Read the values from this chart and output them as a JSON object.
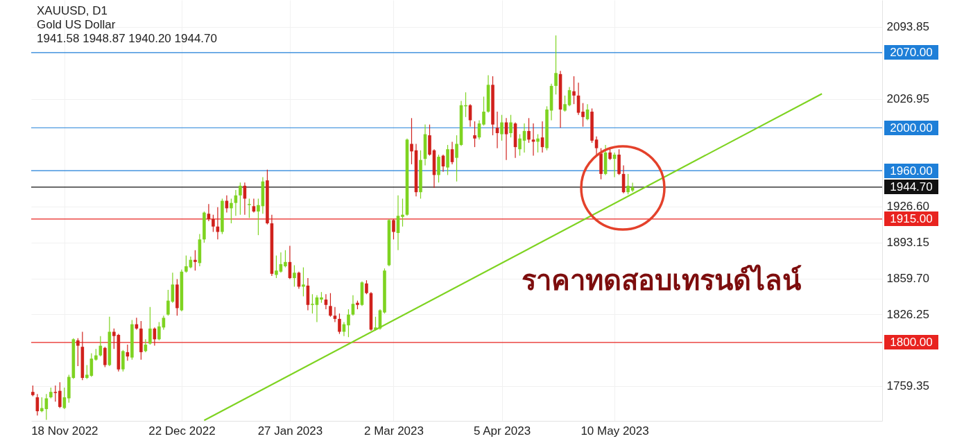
{
  "chart_data": {
    "type": "candlestick",
    "title": "XAUUSD, D1",
    "subtitle": "Gold US Dollar",
    "annotations": [
      "1941.58 1948.87 1940.20 1944.70",
      "ราคาทดสอบเทรนด์ไลน์"
    ],
    "categories": [
      null,
      null,
      null,
      null,
      null,
      null,
      null,
      "18 Nov 2022",
      null,
      null,
      null,
      null,
      null,
      null,
      null,
      null,
      null,
      null,
      null,
      null,
      null,
      null,
      null,
      null,
      null,
      null,
      null,
      null,
      null,
      null,
      null,
      null,
      null,
      "22 Dec 2022",
      null,
      null,
      null,
      null,
      null,
      null,
      null,
      null,
      null,
      null,
      null,
      null,
      null,
      null,
      null,
      null,
      null,
      null,
      null,
      null,
      null,
      null,
      null,
      "27 Jan 2023",
      null,
      null,
      null,
      null,
      null,
      null,
      null,
      null,
      null,
      null,
      null,
      null,
      null,
      null,
      null,
      null,
      null,
      null,
      null,
      null,
      null,
      null,
      "2 Mar 2023",
      null,
      null,
      null,
      null,
      null,
      null,
      null,
      null,
      null,
      null,
      null,
      null,
      null,
      null,
      null,
      null,
      null,
      null,
      null,
      null,
      null,
      null,
      null,
      "5 Apr 2023",
      null,
      null,
      null,
      null,
      null,
      null,
      null,
      null,
      null,
      null,
      null,
      null,
      null,
      null,
      null,
      null,
      null,
      null,
      null,
      null,
      null,
      null,
      null,
      null,
      "10 May 2023",
      null,
      null,
      null,
      null,
      null,
      null,
      null,
      null,
      null,
      null,
      null,
      null,
      null,
      null,
      null,
      null,
      null,
      null,
      null,
      null,
      null,
      null,
      null,
      null,
      null,
      null,
      null,
      null,
      null,
      null,
      null,
      null,
      null,
      null,
      null,
      null,
      null,
      null,
      null,
      null,
      null,
      null,
      null,
      null,
      null,
      null,
      null,
      null,
      null,
      null,
      null,
      null,
      null,
      null,
      null,
      null,
      null,
      null,
      null
    ],
    "ohlc": [
      [
        1754,
        1760,
        1750,
        1751
      ],
      [
        1749,
        1752,
        1732,
        1736
      ],
      [
        1736,
        1749,
        1735,
        1739
      ],
      [
        1738,
        1752,
        1728,
        1748
      ],
      [
        1749,
        1758,
        1748,
        1754
      ],
      [
        1754,
        1760,
        1745,
        1753
      ],
      [
        1755,
        1763,
        1739,
        1740
      ],
      [
        1739,
        1758,
        1738,
        1749
      ],
      [
        1748,
        1770,
        1744,
        1768
      ],
      [
        1767,
        1804,
        1766,
        1803
      ],
      [
        1802,
        1804,
        1778,
        1797
      ],
      [
        1796,
        1810,
        1765,
        1767
      ],
      [
        1767,
        1779,
        1766,
        1770
      ],
      [
        1769,
        1790,
        1768,
        1785
      ],
      [
        1784,
        1794,
        1783,
        1788
      ],
      [
        1788,
        1806,
        1787,
        1797
      ],
      [
        1795,
        1796,
        1777,
        1779
      ],
      [
        1779,
        1824,
        1778,
        1810
      ],
      [
        1810,
        1813,
        1794,
        1806
      ],
      [
        1807,
        1808,
        1773,
        1775
      ],
      [
        1775,
        1793,
        1773,
        1792
      ],
      [
        1791,
        1798,
        1783,
        1787
      ],
      [
        1786,
        1821,
        1784,
        1817
      ],
      [
        1817,
        1823,
        1812,
        1813
      ],
      [
        1813,
        1820,
        1784,
        1791
      ],
      [
        1792,
        1803,
        1791,
        1798
      ],
      [
        1799,
        1833,
        1798,
        1813
      ],
      [
        1813,
        1814,
        1797,
        1803
      ],
      [
        1803,
        1819,
        1802,
        1815
      ],
      [
        1814,
        1825,
        1812,
        1823
      ],
      [
        1826,
        1849,
        1825,
        1839
      ],
      [
        1838,
        1865,
        1837,
        1854
      ],
      [
        1854,
        1859,
        1825,
        1832
      ],
      [
        1830,
        1868,
        1829,
        1866
      ],
      [
        1866,
        1881,
        1865,
        1871
      ],
      [
        1870,
        1880,
        1869,
        1877
      ],
      [
        1877,
        1886,
        1867,
        1875
      ],
      [
        1874,
        1901,
        1871,
        1896
      ],
      [
        1896,
        1922,
        1893,
        1921
      ],
      [
        1920,
        1929,
        1913,
        1915
      ],
      [
        1915,
        1919,
        1903,
        1908
      ],
      [
        1908,
        1926,
        1896,
        1903
      ],
      [
        1903,
        1934,
        1901,
        1932
      ],
      [
        1932,
        1937,
        1921,
        1925
      ],
      [
        1925,
        1934,
        1911,
        1930
      ],
      [
        1930,
        1942,
        1918,
        1937
      ],
      [
        1937,
        1949,
        1919,
        1946
      ],
      [
        1946,
        1949,
        1919,
        1934
      ],
      [
        1928,
        1934,
        1916,
        1929
      ],
      [
        1927,
        1934,
        1921,
        1922
      ],
      [
        1922,
        1934,
        1900,
        1928
      ],
      [
        1927,
        1954,
        1920,
        1950
      ],
      [
        1951,
        1961,
        1910,
        1911
      ],
      [
        1911,
        1919,
        1862,
        1864
      ],
      [
        1863,
        1881,
        1860,
        1867
      ],
      [
        1866,
        1884,
        1865,
        1873
      ],
      [
        1871,
        1886,
        1870,
        1875
      ],
      [
        1875,
        1890,
        1859,
        1860
      ],
      [
        1860,
        1872,
        1852,
        1865
      ],
      [
        1865,
        1866,
        1850,
        1852
      ],
      [
        1852,
        1870,
        1843,
        1854
      ],
      [
        1853,
        1860,
        1830,
        1835
      ],
      [
        1835,
        1845,
        1827,
        1836
      ],
      [
        1835,
        1844,
        1819,
        1842
      ],
      [
        1840,
        1847,
        1837,
        1842
      ],
      [
        1840,
        1845,
        1831,
        1835
      ],
      [
        1834,
        1846,
        1824,
        1825
      ],
      [
        1825,
        1833,
        1819,
        1822
      ],
      [
        1822,
        1827,
        1808,
        1810
      ],
      [
        1810,
        1819,
        1806,
        1817
      ],
      [
        1816,
        1831,
        1805,
        1826
      ],
      [
        1826,
        1844,
        1825,
        1836
      ],
      [
        1837,
        1839,
        1831,
        1835
      ],
      [
        1835,
        1857,
        1834,
        1856
      ],
      [
        1855,
        1858,
        1845,
        1846
      ],
      [
        1846,
        1847,
        1811,
        1812
      ],
      [
        1812,
        1824,
        1811,
        1814
      ],
      [
        1813,
        1831,
        1812,
        1830
      ],
      [
        1828,
        1869,
        1827,
        1867
      ],
      [
        1872,
        1915,
        1871,
        1914
      ],
      [
        1914,
        1915,
        1896,
        1903
      ],
      [
        1902,
        1937,
        1886,
        1918
      ],
      [
        1917,
        1934,
        1908,
        1919
      ],
      [
        1919,
        1990,
        1918,
        1989
      ],
      [
        1985,
        2009,
        1966,
        1978
      ],
      [
        1979,
        1985,
        1936,
        1940
      ],
      [
        1940,
        1979,
        1934,
        1970
      ],
      [
        1971,
        2003,
        1965,
        1994
      ],
      [
        1993,
        2003,
        1974,
        1975
      ],
      [
        1979,
        1980,
        1944,
        1956
      ],
      [
        1956,
        1975,
        1949,
        1973
      ],
      [
        1974,
        1975,
        1959,
        1964
      ],
      [
        1963,
        1984,
        1956,
        1980
      ],
      [
        1980,
        1987,
        1966,
        1968
      ],
      [
        1972,
        1993,
        1950,
        1985
      ],
      [
        1984,
        2025,
        1983,
        2021
      ],
      [
        2020,
        2033,
        2010,
        2021
      ],
      [
        2021,
        2022,
        2001,
        2007
      ],
      [
        1993,
        2006,
        1982,
        1990
      ],
      [
        1991,
        2007,
        1989,
        2004
      ],
      [
        2003,
        2029,
        2002,
        2015
      ],
      [
        2015,
        2049,
        2014,
        2040
      ],
      [
        2040,
        2048,
        1993,
        2003
      ],
      [
        2000,
        2015,
        1981,
        1995
      ],
      [
        1994,
        2012,
        1988,
        2005
      ],
      [
        2005,
        2009,
        1970,
        1994
      ],
      [
        1995,
        2012,
        1991,
        2005
      ],
      [
        2004,
        2005,
        1972,
        1982
      ],
      [
        1980,
        1994,
        1974,
        1990
      ],
      [
        1988,
        2004,
        1977,
        1997
      ],
      [
        1997,
        2009,
        1986,
        1989
      ],
      [
        1989,
        2004,
        1974,
        1987
      ],
      [
        1987,
        1994,
        1977,
        1990
      ],
      [
        1991,
        2006,
        1977,
        1982
      ],
      [
        1981,
        2020,
        1979,
        2017
      ],
      [
        2016,
        2041,
        2007,
        2039
      ],
      [
        2039,
        2086,
        2031,
        2051
      ],
      [
        2050,
        2053,
        2000,
        2017
      ],
      [
        2016,
        2030,
        2015,
        2022
      ],
      [
        2021,
        2038,
        2020,
        2035
      ],
      [
        2034,
        2048,
        2022,
        2030
      ],
      [
        2030,
        2042,
        2012,
        2014
      ],
      [
        2015,
        2023,
        2001,
        2010
      ],
      [
        2008,
        2022,
        2007,
        2017
      ],
      [
        2015,
        2018,
        1986,
        1988
      ],
      [
        1989,
        1992,
        1975,
        1981
      ],
      [
        1976,
        1981,
        1952,
        1957
      ],
      [
        1957,
        1984,
        1956,
        1977
      ],
      [
        1977,
        1982,
        1970,
        1971
      ],
      [
        1971,
        1977,
        1954,
        1975
      ],
      [
        1975,
        1980,
        1956,
        1957
      ],
      [
        1957,
        1965,
        1939,
        1940
      ],
      [
        1940,
        1957,
        1938,
        1946
      ],
      [
        1941.58,
        1948.87,
        1940.2,
        1944.7
      ],
      null,
      null,
      null,
      null,
      null,
      null,
      null,
      null,
      null,
      null,
      null,
      null,
      null,
      null,
      null,
      null,
      null,
      null,
      null,
      null,
      null,
      null,
      null,
      null,
      null,
      null,
      null,
      null,
      null,
      null,
      null,
      null,
      null,
      null,
      null,
      null,
      null,
      null,
      null,
      null,
      null,
      null,
      null,
      null,
      null,
      null,
      null,
      null,
      null,
      null,
      null,
      null,
      null,
      null,
      null
    ],
    "colors": [
      "#d0211c",
      "#d0211c",
      "#7ed321",
      "#7ed321",
      "#7ed321",
      "#d0211c",
      "#d0211c",
      "#7ed321",
      "#7ed321",
      "#7ed321",
      "#d0211c",
      "#d0211c",
      "#7ed321",
      "#7ed321",
      "#7ed321",
      "#7ed321",
      "#d0211c",
      "#7ed321",
      "#d0211c",
      "#d0211c",
      "#7ed321",
      "#d0211c",
      "#7ed321",
      "#d0211c",
      "#d0211c",
      "#7ed321",
      "#7ed321",
      "#d0211c",
      "#7ed321",
      "#7ed321",
      "#7ed321",
      "#7ed321",
      "#d0211c",
      "#7ed321",
      "#7ed321",
      "#7ed321",
      "#d0211c",
      "#7ed321",
      "#7ed321",
      "#d0211c",
      "#d0211c",
      "#d0211c",
      "#7ed321",
      "#d0211c",
      "#7ed321",
      "#7ed321",
      "#7ed321",
      "#d0211c",
      "#7ed321",
      "#d0211c",
      "#7ed321",
      "#7ed321",
      "#d0211c",
      "#d0211c",
      "#7ed321",
      "#7ed321",
      "#7ed321",
      "#d0211c",
      "#7ed321",
      "#d0211c",
      "#7ed321",
      "#d0211c",
      "#7ed321",
      "#7ed321",
      "#7ed321",
      "#d0211c",
      "#d0211c",
      "#d0211c",
      "#d0211c",
      "#7ed321",
      "#7ed321",
      "#7ed321",
      "#d0211c",
      "#7ed321",
      "#d0211c",
      "#d0211c",
      "#7ed321",
      "#7ed321",
      "#7ed321",
      "#7ed321",
      "#d0211c",
      "#7ed321",
      "#7ed321",
      "#7ed321",
      "#d0211c",
      "#d0211c",
      "#7ed321",
      "#7ed321",
      "#d0211c",
      "#d0211c",
      "#7ed321",
      "#d0211c",
      "#7ed321",
      "#d0211c",
      "#7ed321",
      "#7ed321",
      "#7ed321",
      "#d0211c",
      "#d0211c",
      "#7ed321",
      "#7ed321",
      "#7ed321",
      "#d0211c",
      "#d0211c",
      "#7ed321",
      "#d0211c",
      "#7ed321",
      "#d0211c",
      "#7ed321",
      "#7ed321",
      "#d0211c",
      "#d0211c",
      "#7ed321",
      "#d0211c",
      "#7ed321",
      "#7ed321",
      "#7ed321",
      "#d0211c",
      "#7ed321",
      "#7ed321",
      "#d0211c",
      "#d0211c",
      "#d0211c",
      "#7ed321",
      "#d0211c",
      "#d0211c",
      "#d0211c",
      "#7ed321",
      "#d0211c",
      "#7ed321",
      "#d0211c",
      "#d0211c",
      "#7ed321",
      "#7ed321",
      null,
      null,
      null,
      null,
      null,
      null,
      null,
      null,
      null,
      null,
      null,
      null,
      null,
      null,
      null,
      null,
      null,
      null,
      null,
      null,
      null,
      null,
      null,
      null,
      null,
      null,
      null,
      null,
      null,
      null,
      null,
      null,
      null,
      null,
      null,
      null,
      null,
      null,
      null,
      null,
      null,
      null,
      null,
      null,
      null,
      null,
      null,
      null,
      null,
      null,
      null,
      null,
      null,
      null,
      null
    ],
    "series": [
      {
        "type": "line",
        "color": "#7ed321",
        "values": [
          null,
          null,
          null,
          null,
          null,
          null,
          null,
          null,
          null,
          null,
          null,
          null,
          null,
          null,
          null,
          null,
          null,
          null,
          null,
          null,
          null,
          null,
          null,
          null,
          null,
          null,
          null,
          null,
          null,
          null,
          null,
          null,
          null,
          null,
          null,
          null,
          null,
          null,
          1727.5,
          null,
          null,
          null,
          null,
          null,
          null,
          null,
          null,
          null,
          null,
          null,
          null,
          null,
          null,
          null,
          null,
          null,
          null,
          null,
          null,
          null,
          null,
          null,
          null,
          null,
          null,
          null,
          null,
          null,
          null,
          null,
          null,
          null,
          null,
          null,
          null,
          null,
          null,
          null,
          null,
          null,
          null,
          null,
          null,
          null,
          null,
          null,
          null,
          null,
          null,
          null,
          null,
          null,
          null,
          null,
          null,
          null,
          null,
          null,
          null,
          null,
          null,
          null,
          null,
          null,
          null,
          null,
          null,
          null,
          null,
          null,
          null,
          null,
          null,
          null,
          null,
          null,
          null,
          null,
          null,
          null,
          null,
          null,
          null,
          null,
          null,
          null,
          null,
          null,
          null,
          null,
          null,
          null,
          null,
          null,
          null,
          null,
          null,
          null,
          null,
          null,
          null,
          null,
          null,
          null,
          null,
          null,
          null,
          null,
          null,
          null,
          null,
          null,
          null,
          null,
          null,
          null,
          null,
          null,
          null,
          null,
          null,
          null,
          null,
          null,
          null,
          null,
          null,
          null,
          null,
          null,
          null,
          null,
          null,
          null,
          null,
          2031.7,
          null,
          null,
          null,
          null,
          null,
          null,
          null,
          null,
          null,
          null,
          null,
          null,
          null
        ]
      }
    ],
    "ylim": [
      1727,
      2119
    ],
    "yticks": [
      2093.85,
      2026.95,
      {
        "value": 1926.6,
        "label": "1926.60"
      },
      1893.15,
      {
        "value": 1859.7,
        "label": "1859.70"
      },
      1826.25,
      1759.35
    ],
    "ref_lines": [
      {
        "axis": "y",
        "value": 2070,
        "label": "2070.00",
        "color": "#1e7fd8"
      },
      {
        "axis": "y",
        "value": 2000,
        "label": "2000.00",
        "color": "#1e7fd8"
      },
      {
        "axis": "y",
        "value": 1960,
        "label": "1960.00",
        "color": "#1e7fd8"
      },
      {
        "axis": "y",
        "value": 1944.7,
        "label": "1944.70",
        "color": "#111111"
      },
      {
        "axis": "y",
        "value": 1915,
        "label": "1915.00",
        "color": "#e8231f"
      },
      {
        "axis": "y",
        "value": 1800,
        "label": "1800.00",
        "color": "#e8231f"
      }
    ],
    "grid": true
  }
}
